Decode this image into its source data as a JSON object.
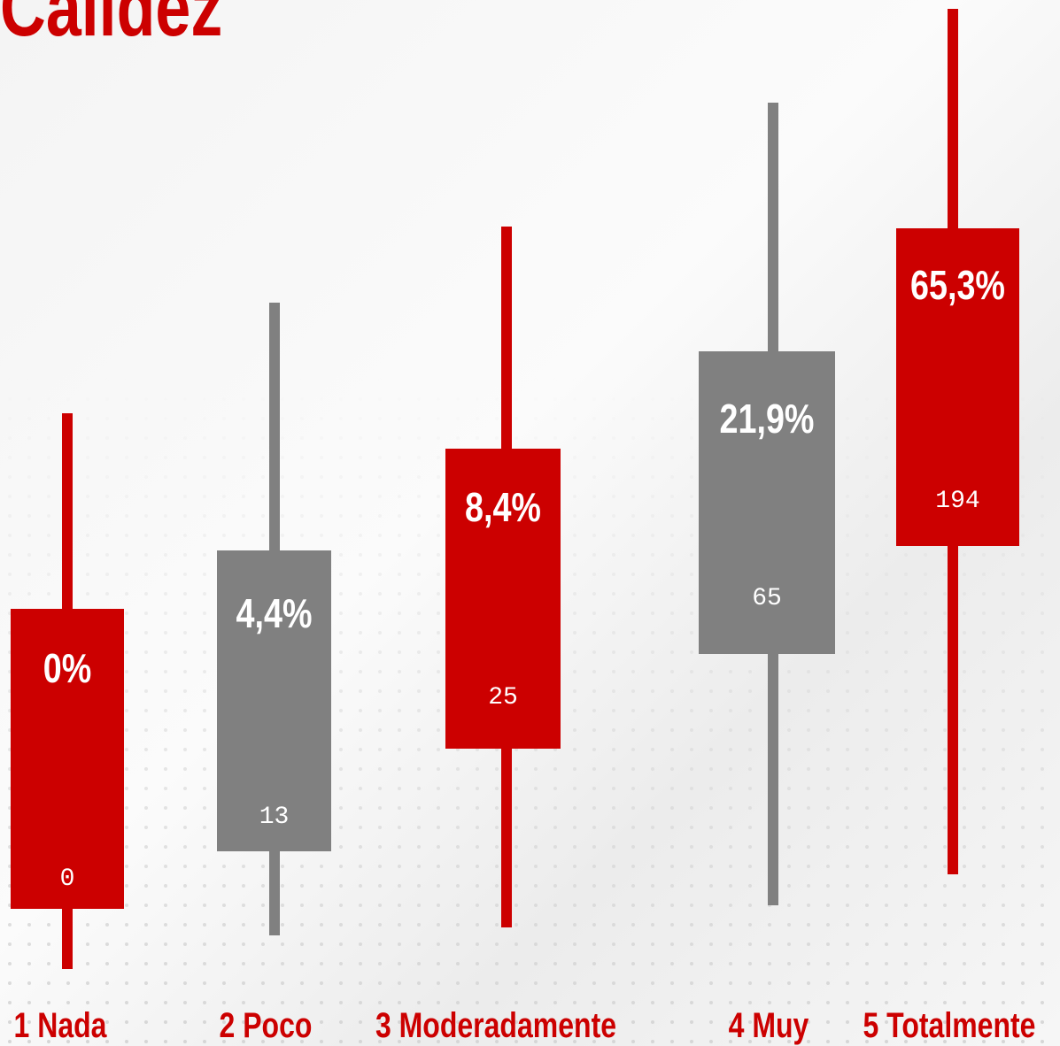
{
  "title": "Calidez",
  "items": [
    {
      "label": "1 Nada",
      "percent": "0%",
      "count": 0
    },
    {
      "label": "2 Poco",
      "percent": "4,4%",
      "count": 13
    },
    {
      "label": "3 Moderadamente",
      "percent": "8,4%",
      "count": 25
    },
    {
      "label": "4  Muy",
      "percent": "21,9%",
      "count": 65
    },
    {
      "label": "5 Totalmente",
      "percent": "65,3%",
      "count": 194
    }
  ]
}
